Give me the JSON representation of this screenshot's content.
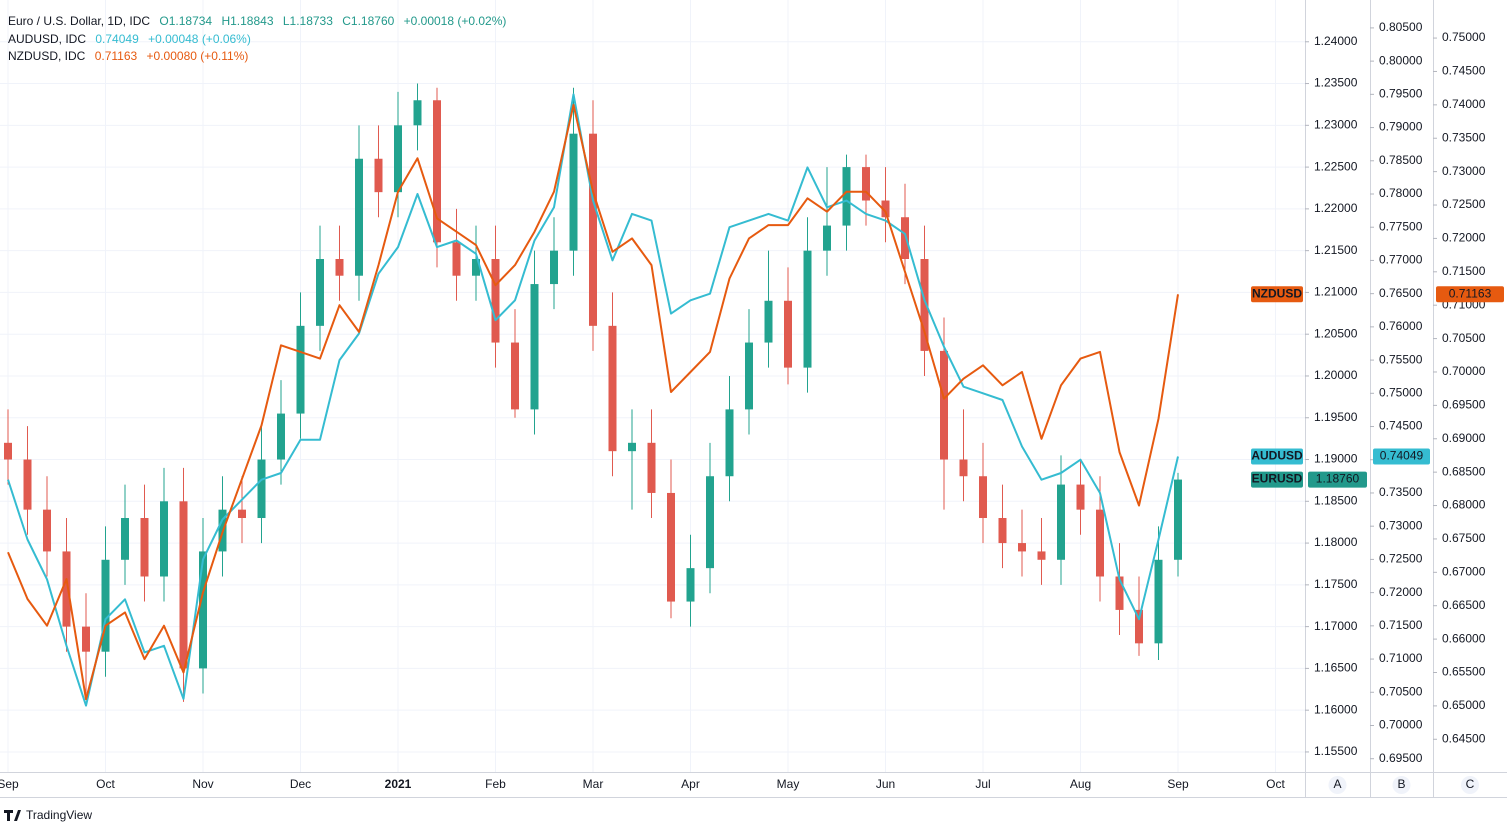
{
  "chart_data": {
    "type": "candlestick",
    "title": "Euro / U.S. Dollar, 1D, IDC",
    "header": [
      "O1.18734",
      "H1.18843",
      "L1.18733",
      "C1.18760",
      "+0.00018 (+0.02%)"
    ],
    "categories": [
      "Sep",
      null,
      null,
      null,
      null,
      "Oct",
      null,
      null,
      null,
      null,
      "Nov",
      null,
      null,
      null,
      null,
      "Dec",
      null,
      null,
      null,
      null,
      "2021",
      null,
      null,
      null,
      null,
      "Feb",
      null,
      null,
      null,
      null,
      "Mar",
      null,
      null,
      null,
      null,
      "Apr",
      null,
      null,
      null,
      null,
      "May",
      null,
      null,
      null,
      null,
      "Jun",
      null,
      null,
      null,
      null,
      "Jul",
      null,
      null,
      null,
      null,
      "Aug",
      null,
      null,
      null,
      null,
      "Sep",
      null,
      null,
      null,
      null,
      "Oct"
    ],
    "series": [
      {
        "name": "EURUSD",
        "type": "candlestick",
        "axis": "y",
        "up_color": "#22a38f",
        "down_color": "#e05a4f",
        "tag_color": "#22998b",
        "tag": "1.18760",
        "open": [
          1.192,
          1.19,
          1.184,
          1.179,
          1.17,
          1.167,
          1.178,
          1.183,
          1.176,
          1.185,
          1.165,
          1.179,
          1.184,
          1.183,
          1.19,
          1.1955,
          1.206,
          1.214,
          1.212,
          1.226,
          1.222,
          1.23,
          1.233,
          1.216,
          1.212,
          1.214,
          1.204,
          1.196,
          1.211,
          1.215,
          1.229,
          1.206,
          1.191,
          1.192,
          1.186,
          1.173,
          1.177,
          1.188,
          1.196,
          1.204,
          1.209,
          1.201,
          1.215,
          1.218,
          1.225,
          1.221,
          1.219,
          1.214,
          1.203,
          1.19,
          1.188,
          1.183,
          1.18,
          1.179,
          1.178,
          1.187,
          1.184,
          1.176,
          1.172,
          1.168,
          1.178,
          null,
          null,
          null,
          null,
          null
        ],
        "high": [
          1.196,
          1.194,
          1.188,
          1.183,
          1.174,
          1.182,
          1.187,
          1.187,
          1.189,
          1.189,
          1.183,
          1.188,
          1.188,
          1.194,
          1.1995,
          1.21,
          1.218,
          1.218,
          1.23,
          1.23,
          1.234,
          1.235,
          1.2345,
          1.22,
          1.218,
          1.218,
          1.208,
          1.215,
          1.219,
          1.2345,
          1.233,
          1.21,
          1.196,
          1.196,
          1.19,
          1.181,
          1.192,
          1.2,
          1.208,
          1.215,
          1.213,
          1.219,
          1.225,
          1.2265,
          1.2265,
          1.225,
          1.223,
          1.218,
          1.207,
          1.196,
          1.192,
          1.187,
          1.184,
          1.183,
          1.1905,
          1.19,
          1.188,
          1.18,
          1.176,
          1.182,
          1.1884,
          null,
          null,
          null,
          null,
          null
        ],
        "low": [
          1.187,
          1.181,
          1.176,
          1.167,
          1.162,
          1.164,
          1.175,
          1.173,
          1.173,
          1.161,
          1.162,
          1.176,
          1.18,
          1.18,
          1.187,
          1.1925,
          1.203,
          1.209,
          1.209,
          1.219,
          1.219,
          1.227,
          1.213,
          1.209,
          1.209,
          1.201,
          1.195,
          1.193,
          1.208,
          1.212,
          1.203,
          1.188,
          1.184,
          1.183,
          1.171,
          1.17,
          1.174,
          1.185,
          1.193,
          1.201,
          1.199,
          1.198,
          1.212,
          1.215,
          1.218,
          1.216,
          1.211,
          1.2,
          1.184,
          1.185,
          1.18,
          1.177,
          1.176,
          1.175,
          1.175,
          1.181,
          1.173,
          1.169,
          1.1665,
          1.166,
          1.176,
          null,
          null,
          null,
          null,
          null
        ],
        "close": [
          1.19,
          1.184,
          1.179,
          1.17,
          1.167,
          1.178,
          1.183,
          1.176,
          1.185,
          1.165,
          1.179,
          1.184,
          1.183,
          1.19,
          1.1955,
          1.206,
          1.214,
          1.212,
          1.226,
          1.222,
          1.23,
          1.233,
          1.216,
          1.212,
          1.214,
          1.204,
          1.196,
          1.211,
          1.215,
          1.229,
          1.206,
          1.191,
          1.192,
          1.186,
          1.173,
          1.177,
          1.188,
          1.196,
          1.204,
          1.209,
          1.201,
          1.215,
          1.218,
          1.225,
          1.221,
          1.219,
          1.214,
          1.203,
          1.19,
          1.188,
          1.183,
          1.18,
          1.179,
          1.178,
          1.187,
          1.184,
          1.176,
          1.172,
          1.168,
          1.178,
          1.1876,
          null,
          null,
          null,
          null,
          null
        ]
      },
      {
        "name": "AUDUSD",
        "type": "line",
        "axis": "y2",
        "color": "#35bcd1",
        "tag": "0.74049",
        "legend": "AUDUSD, IDC",
        "legend_values": [
          "0.74049",
          "+0.00048 (+0.06%)"
        ],
        "values": [
          0.737,
          0.728,
          0.722,
          0.712,
          0.703,
          0.716,
          0.719,
          0.711,
          0.712,
          0.704,
          0.725,
          0.731,
          0.734,
          0.737,
          0.738,
          0.743,
          0.743,
          0.755,
          0.759,
          0.768,
          0.772,
          0.78,
          0.772,
          0.773,
          0.771,
          0.761,
          0.764,
          0.773,
          0.778,
          0.795,
          0.779,
          0.77,
          0.777,
          0.776,
          0.762,
          0.764,
          0.765,
          0.775,
          0.776,
          0.777,
          0.776,
          0.784,
          0.778,
          0.779,
          0.777,
          0.776,
          0.774,
          0.764,
          0.757,
          0.751,
          0.75,
          0.749,
          0.742,
          0.737,
          0.738,
          0.74,
          0.735,
          0.722,
          0.716,
          0.728,
          0.74049,
          null,
          null,
          null,
          null,
          null
        ]
      },
      {
        "name": "NZDUSD",
        "type": "line",
        "axis": "y3",
        "color": "#e65a10",
        "tag": "0.71163",
        "legend": "NZDUSD, IDC",
        "legend_values": [
          "0.71163",
          "+0.00080 (+0.11%)"
        ],
        "values": [
          0.673,
          0.666,
          0.662,
          0.669,
          0.651,
          0.662,
          0.664,
          0.657,
          0.662,
          0.655,
          0.667,
          0.676,
          0.684,
          0.692,
          0.704,
          0.703,
          0.702,
          0.71,
          0.706,
          0.716,
          0.727,
          0.732,
          0.723,
          0.721,
          0.719,
          0.713,
          0.716,
          0.721,
          0.727,
          0.74,
          0.727,
          0.718,
          0.72,
          0.716,
          0.697,
          0.7,
          0.703,
          0.714,
          0.72,
          0.722,
          0.722,
          0.726,
          0.724,
          0.727,
          0.727,
          0.724,
          0.715,
          0.706,
          0.696,
          0.699,
          0.701,
          0.698,
          0.7,
          0.69,
          0.698,
          0.702,
          0.703,
          0.688,
          0.68,
          0.693,
          0.71163,
          null,
          null,
          null,
          null,
          null
        ]
      }
    ],
    "ylim": [
      1.1526,
      1.245
    ],
    "yticks": [
      {
        "value": 1.155,
        "label": "1.15500"
      },
      {
        "value": 1.16,
        "label": "1.16000"
      },
      {
        "value": 1.165,
        "label": "1.16500"
      },
      {
        "value": 1.17,
        "label": "1.17000"
      },
      {
        "value": 1.175,
        "label": "1.17500"
      },
      {
        "value": 1.18,
        "label": "1.18000"
      },
      {
        "value": 1.185,
        "label": "1.18500"
      },
      {
        "value": 1.19,
        "label": "1.19000"
      },
      {
        "value": 1.195,
        "label": "1.19500"
      },
      {
        "value": 1.2,
        "label": "1.20000"
      },
      {
        "value": 1.205,
        "label": "1.20500"
      },
      {
        "value": 1.21,
        "label": "1.21000"
      },
      {
        "value": 1.215,
        "label": "1.21500"
      },
      {
        "value": 1.22,
        "label": "1.22000"
      },
      {
        "value": 1.225,
        "label": "1.22500"
      },
      {
        "value": 1.23,
        "label": "1.23000"
      },
      {
        "value": 1.235,
        "label": "1.23500"
      },
      {
        "value": 1.24,
        "label": "1.24000"
      }
    ],
    "y2lim": [
      0.693,
      0.8092
    ],
    "y2ticks": [
      {
        "value": 0.695,
        "label": "0.69500"
      },
      {
        "value": 0.7,
        "label": "0.70000"
      },
      {
        "value": 0.705,
        "label": "0.70500"
      },
      {
        "value": 0.71,
        "label": "0.71000"
      },
      {
        "value": 0.715,
        "label": "0.71500"
      },
      {
        "value": 0.72,
        "label": "0.72000"
      },
      {
        "value": 0.725,
        "label": "0.72500"
      },
      {
        "value": 0.73,
        "label": "0.73000"
      },
      {
        "value": 0.735,
        "label": "0.73500"
      },
      {
        "value": 0.74,
        "label": "0.74000"
      },
      {
        "value": 0.745,
        "label": "0.74500"
      },
      {
        "value": 0.75,
        "label": "0.75000"
      },
      {
        "value": 0.755,
        "label": "0.75500"
      },
      {
        "value": 0.76,
        "label": "0.76000"
      },
      {
        "value": 0.765,
        "label": "0.76500"
      },
      {
        "value": 0.77,
        "label": "0.77000"
      },
      {
        "value": 0.775,
        "label": "0.77500"
      },
      {
        "value": 0.78,
        "label": "0.78000"
      },
      {
        "value": 0.785,
        "label": "0.78500"
      },
      {
        "value": 0.79,
        "label": "0.79000"
      },
      {
        "value": 0.795,
        "label": "0.79500"
      },
      {
        "value": 0.8,
        "label": "0.80000"
      },
      {
        "value": 0.805,
        "label": "0.80500"
      }
    ],
    "y3lim": [
      0.6401,
      0.7557
    ],
    "y3ticks": [
      {
        "value": 0.645,
        "label": "0.64500"
      },
      {
        "value": 0.65,
        "label": "0.65000"
      },
      {
        "value": 0.655,
        "label": "0.65500"
      },
      {
        "value": 0.66,
        "label": "0.66000"
      },
      {
        "value": 0.665,
        "label": "0.66500"
      },
      {
        "value": 0.67,
        "label": "0.67000"
      },
      {
        "value": 0.675,
        "label": "0.67500"
      },
      {
        "value": 0.68,
        "label": "0.68000"
      },
      {
        "value": 0.685,
        "label": "0.68500"
      },
      {
        "value": 0.69,
        "label": "0.69000"
      },
      {
        "value": 0.695,
        "label": "0.69500"
      },
      {
        "value": 0.7,
        "label": "0.70000"
      },
      {
        "value": 0.705,
        "label": "0.70500"
      },
      {
        "value": 0.71,
        "label": "0.71000"
      },
      {
        "value": 0.715,
        "label": "0.71500"
      },
      {
        "value": 0.72,
        "label": "0.72000"
      },
      {
        "value": 0.725,
        "label": "0.72500"
      },
      {
        "value": 0.73,
        "label": "0.73000"
      },
      {
        "value": 0.735,
        "label": "0.73500"
      },
      {
        "value": 0.74,
        "label": "0.74000"
      },
      {
        "value": 0.745,
        "label": "0.74500"
      },
      {
        "value": 0.75,
        "label": "0.75000"
      }
    ],
    "axis_names": [
      "A",
      "B",
      "C"
    ],
    "grid": true,
    "footer": "TradingView"
  }
}
